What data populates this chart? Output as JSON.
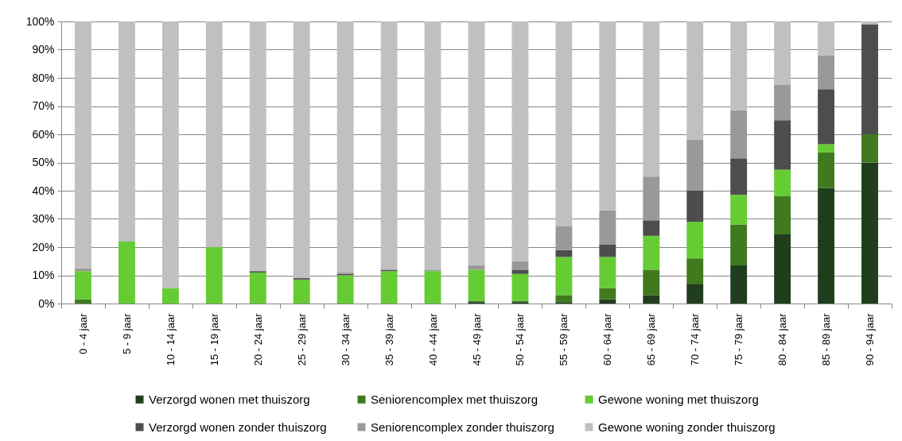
{
  "chart_data": {
    "type": "bar",
    "stacked": true,
    "categories": [
      "0 - 4 jaar",
      "5 - 9 jaar",
      "10 - 14 jaar",
      "15 - 19 jaar",
      "20 - 24 jaar",
      "25 - 29 jaar",
      "30 - 34 jaar",
      "35 - 39 jaar",
      "40 - 44 jaar",
      "45 - 49 jaar",
      "50 - 54 jaar",
      "55 - 59 jaar",
      "60 - 64 jaar",
      "65 - 69 jaar",
      "70 - 74 jaar",
      "75 - 79 jaar",
      "80 - 84 jaar",
      "85 - 89 jaar",
      "90 - 94 jaar"
    ],
    "series": [
      {
        "name": "Verzorgd wonen met thuiszorg",
        "color": "#203d1e",
        "values": [
          null,
          null,
          null,
          null,
          null,
          null,
          null,
          null,
          null,
          0.5,
          0.5,
          0.5,
          1.5,
          3.0,
          7.0,
          13.5,
          24.5,
          41.0,
          50.0
        ]
      },
      {
        "name": "Seniorencomplex met thuiszorg",
        "color": "#3f7a1f",
        "values": [
          1.5,
          null,
          null,
          null,
          null,
          null,
          null,
          null,
          null,
          0.5,
          0.5,
          2.5,
          4.0,
          9.0,
          9.0,
          14.5,
          13.5,
          12.5,
          10.0
        ]
      },
      {
        "name": "Gewone woning met thuiszorg",
        "color": "#66cc33",
        "values": [
          10.0,
          22.0,
          5.5,
          20.0,
          11.0,
          8.5,
          10.0,
          11.5,
          11.5,
          11.0,
          9.5,
          13.5,
          11.0,
          12.0,
          13.0,
          10.5,
          9.5,
          3.0,
          null
        ]
      },
      {
        "name": "Verzorgd wonen zonder thuiszorg",
        "color": "#4d4d4d",
        "values": [
          null,
          null,
          null,
          null,
          0.5,
          0.5,
          0.5,
          0.5,
          null,
          null,
          1.5,
          2.5,
          4.5,
          5.5,
          11.0,
          13.0,
          17.5,
          19.5,
          39.0
        ]
      },
      {
        "name": "Seniorencomplex zonder thuiszorg",
        "color": "#999999",
        "values": [
          1.0,
          null,
          null,
          null,
          null,
          null,
          0.5,
          null,
          0.5,
          1.5,
          3.0,
          8.5,
          12.0,
          15.5,
          18.0,
          17.0,
          12.5,
          12.0,
          null
        ]
      },
      {
        "name": "Gewone woning zonder thuiszorg",
        "color": "#c0c0c0",
        "values": [
          87.5,
          78.0,
          94.5,
          80.0,
          88.5,
          91.0,
          89.0,
          88.0,
          88.0,
          86.5,
          85.0,
          72.5,
          67.0,
          55.0,
          42.0,
          31.5,
          22.5,
          12.0,
          1.0
        ]
      }
    ],
    "ylim": [
      0,
      100
    ],
    "yticks": [
      {
        "value": 0,
        "label": "0%"
      },
      {
        "value": 10,
        "label": "10%"
      },
      {
        "value": 20,
        "label": "20%"
      },
      {
        "value": 30,
        "label": "30%"
      },
      {
        "value": 40,
        "label": "40%"
      },
      {
        "value": 50,
        "label": "50%"
      },
      {
        "value": 60,
        "label": "60%"
      },
      {
        "value": 70,
        "label": "70%"
      },
      {
        "value": 80,
        "label": "80%"
      },
      {
        "value": 90,
        "label": "90%"
      },
      {
        "value": 100,
        "label": "100%"
      }
    ],
    "grid": "y",
    "legend": "bottom"
  }
}
